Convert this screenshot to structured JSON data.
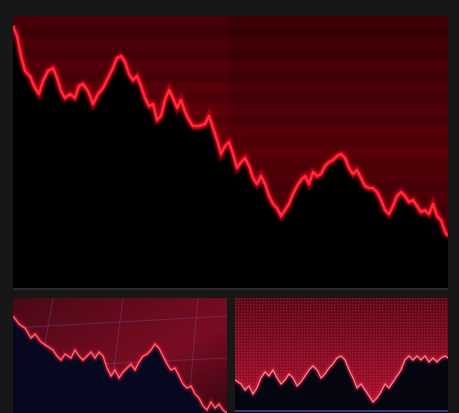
{
  "scene": {
    "description_icons": [
      "declining-line-graph",
      "red-neon-line"
    ],
    "colors": {
      "background": "#171717",
      "line": "#ff1a2e",
      "glow": "#ff0020",
      "fill_top": "#5a0008",
      "fill_bottom": "#1a0003",
      "blue_fill": "#05051a",
      "red_fill": "#7a0a1e"
    }
  }
}
